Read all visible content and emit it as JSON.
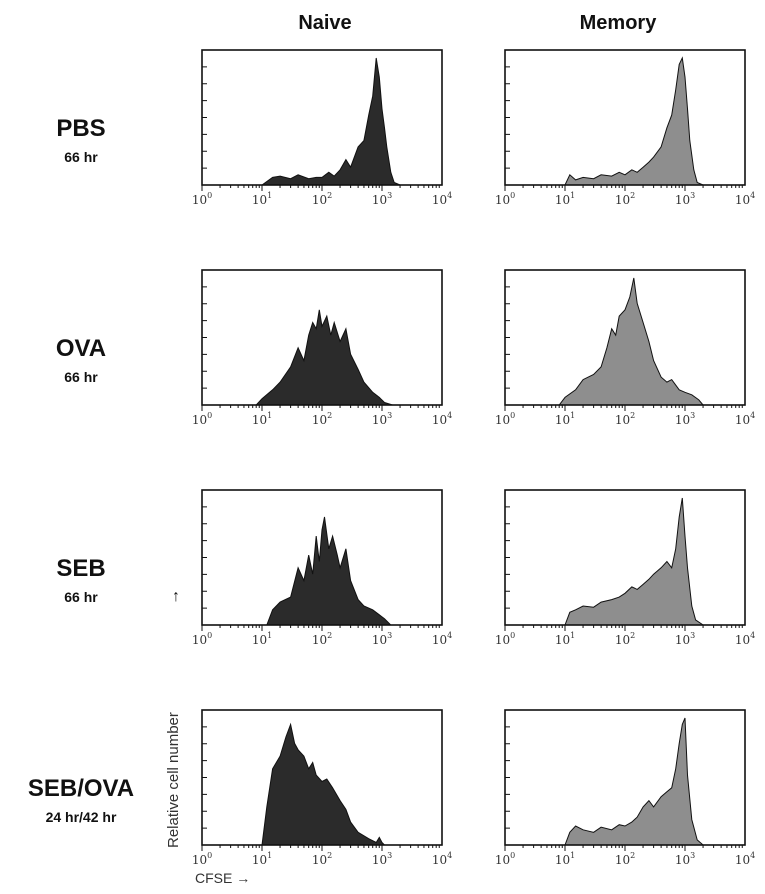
{
  "columns": [
    "Naive",
    "Memory"
  ],
  "rows": [
    {
      "label": "PBS",
      "sub": "66 hr"
    },
    {
      "label": "OVA",
      "sub": "66 hr"
    },
    {
      "label": "SEB",
      "sub": "66 hr"
    },
    {
      "label": "SEB/OVA",
      "sub": "24 hr/42 hr"
    }
  ],
  "axis": {
    "xlabel": "CFSE",
    "ylabel": "Relative cell number",
    "xtick_base": "10",
    "xtick_exponents": [
      "0",
      "1",
      "2",
      "3",
      "4"
    ]
  },
  "colors": {
    "naive_fill": "#2b2b2b",
    "memory_fill": "#8e8e8e",
    "frame": "#111111"
  },
  "chart_data": [
    {
      "type": "area",
      "panel": "PBS-Naive",
      "xscale": "log",
      "xlim": [
        1,
        10000
      ],
      "ylim": [
        0,
        1
      ],
      "x": [
        1.5,
        10,
        15,
        20,
        30,
        40,
        60,
        80,
        100,
        130,
        160,
        200,
        250,
        300,
        400,
        500,
        600,
        700,
        800,
        900,
        1000,
        1100,
        1200,
        1400,
        1600,
        2000
      ],
      "y": [
        0,
        0,
        0.06,
        0.07,
        0.05,
        0.08,
        0.05,
        0.06,
        0.06,
        0.1,
        0.07,
        0.12,
        0.2,
        0.14,
        0.3,
        0.35,
        0.55,
        0.7,
        1.0,
        0.85,
        0.6,
        0.45,
        0.3,
        0.1,
        0.02,
        0
      ]
    },
    {
      "type": "area",
      "panel": "PBS-Memory",
      "xscale": "log",
      "xlim": [
        1,
        10000
      ],
      "ylim": [
        0,
        1
      ],
      "x": [
        1.5,
        10,
        12,
        15,
        20,
        30,
        40,
        60,
        80,
        100,
        130,
        160,
        200,
        250,
        300,
        400,
        500,
        600,
        700,
        800,
        900,
        1000,
        1100,
        1200,
        1400,
        1600,
        2000
      ],
      "y": [
        0,
        0,
        0.08,
        0.04,
        0.06,
        0.05,
        0.08,
        0.07,
        0.1,
        0.08,
        0.12,
        0.1,
        0.14,
        0.18,
        0.22,
        0.3,
        0.45,
        0.55,
        0.75,
        0.95,
        1.0,
        0.85,
        0.6,
        0.35,
        0.12,
        0.02,
        0
      ]
    },
    {
      "type": "area",
      "panel": "OVA-Naive",
      "xscale": "log",
      "xlim": [
        1,
        10000
      ],
      "ylim": [
        0,
        1
      ],
      "x": [
        1.5,
        8,
        10,
        15,
        20,
        30,
        40,
        50,
        60,
        70,
        80,
        90,
        100,
        120,
        140,
        160,
        200,
        250,
        300,
        400,
        500,
        700,
        900,
        1100,
        1500
      ],
      "y": [
        0,
        0,
        0.05,
        0.12,
        0.18,
        0.3,
        0.45,
        0.35,
        0.55,
        0.65,
        0.6,
        0.75,
        0.62,
        0.7,
        0.55,
        0.65,
        0.5,
        0.6,
        0.4,
        0.28,
        0.18,
        0.1,
        0.06,
        0.02,
        0
      ]
    },
    {
      "type": "area",
      "panel": "OVA-Memory",
      "xscale": "log",
      "xlim": [
        1,
        10000
      ],
      "ylim": [
        0,
        1
      ],
      "x": [
        1.5,
        8,
        10,
        15,
        20,
        30,
        40,
        50,
        60,
        70,
        80,
        100,
        120,
        140,
        160,
        200,
        250,
        300,
        400,
        500,
        600,
        800,
        1000,
        1300,
        1700,
        2000
      ],
      "y": [
        0,
        0,
        0.06,
        0.12,
        0.2,
        0.24,
        0.3,
        0.45,
        0.6,
        0.55,
        0.7,
        0.75,
        0.85,
        1.0,
        0.8,
        0.65,
        0.5,
        0.35,
        0.22,
        0.18,
        0.2,
        0.12,
        0.1,
        0.08,
        0.04,
        0
      ]
    },
    {
      "type": "area",
      "panel": "SEB-Naive",
      "xscale": "log",
      "xlim": [
        1,
        10000
      ],
      "ylim": [
        0,
        1
      ],
      "x": [
        1.5,
        12,
        15,
        20,
        30,
        40,
        50,
        60,
        70,
        80,
        90,
        100,
        110,
        130,
        150,
        180,
        200,
        250,
        300,
        400,
        500,
        700,
        900,
        1100,
        1400
      ],
      "y": [
        0,
        0,
        0.12,
        0.18,
        0.22,
        0.45,
        0.35,
        0.55,
        0.4,
        0.7,
        0.5,
        0.75,
        0.85,
        0.6,
        0.7,
        0.55,
        0.45,
        0.6,
        0.35,
        0.2,
        0.15,
        0.12,
        0.08,
        0.05,
        0
      ]
    },
    {
      "type": "area",
      "panel": "SEB-Memory",
      "xscale": "log",
      "xlim": [
        1,
        10000
      ],
      "ylim": [
        0,
        1
      ],
      "x": [
        1.5,
        10,
        12,
        15,
        20,
        30,
        40,
        60,
        80,
        100,
        130,
        160,
        200,
        250,
        300,
        400,
        500,
        600,
        700,
        800,
        900,
        1000,
        1100,
        1300,
        1500,
        2000
      ],
      "y": [
        0,
        0,
        0.1,
        0.12,
        0.15,
        0.14,
        0.18,
        0.2,
        0.22,
        0.25,
        0.3,
        0.28,
        0.32,
        0.36,
        0.4,
        0.45,
        0.5,
        0.45,
        0.6,
        0.85,
        1.0,
        0.7,
        0.45,
        0.15,
        0.04,
        0
      ]
    },
    {
      "type": "area",
      "panel": "SEBOVA-Naive",
      "xscale": "log",
      "xlim": [
        1,
        10000
      ],
      "ylim": [
        0,
        1
      ],
      "x": [
        1.5,
        10,
        12,
        15,
        20,
        25,
        30,
        35,
        40,
        50,
        60,
        70,
        80,
        100,
        120,
        150,
        200,
        250,
        300,
        400,
        600,
        800,
        900,
        1000,
        1100
      ],
      "y": [
        0,
        0,
        0.3,
        0.6,
        0.7,
        0.85,
        0.95,
        0.8,
        0.75,
        0.7,
        0.6,
        0.65,
        0.55,
        0.5,
        0.52,
        0.45,
        0.35,
        0.28,
        0.18,
        0.1,
        0.05,
        0.02,
        0.06,
        0.02,
        0
      ]
    },
    {
      "type": "area",
      "panel": "SEBOVA-Memory",
      "xscale": "log",
      "xlim": [
        1,
        10000
      ],
      "ylim": [
        0,
        1
      ],
      "x": [
        1.5,
        10,
        12,
        15,
        20,
        30,
        40,
        60,
        80,
        100,
        130,
        160,
        200,
        250,
        300,
        400,
        500,
        600,
        700,
        800,
        900,
        1000,
        1100,
        1300,
        1600,
        2000
      ],
      "y": [
        0,
        0,
        0.1,
        0.15,
        0.12,
        0.1,
        0.14,
        0.12,
        0.16,
        0.15,
        0.18,
        0.22,
        0.3,
        0.35,
        0.3,
        0.38,
        0.42,
        0.45,
        0.6,
        0.8,
        0.95,
        1.0,
        0.55,
        0.2,
        0.04,
        0
      ]
    }
  ]
}
